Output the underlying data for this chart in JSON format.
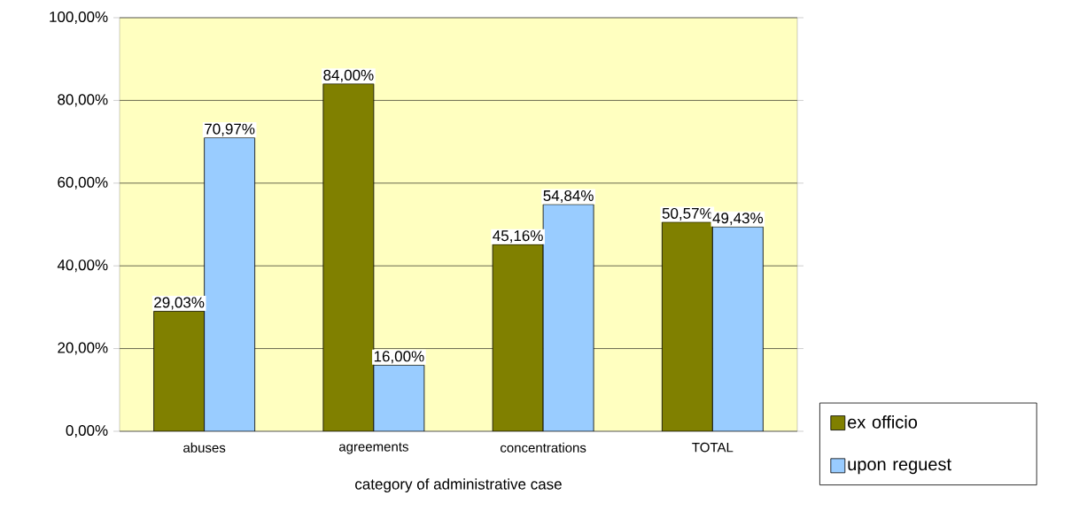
{
  "chart_data": {
    "type": "bar",
    "xlabel": "category of administrative case",
    "categories": [
      "abuses",
      "agreements",
      "concentrations",
      "TOTAL"
    ],
    "series": [
      {
        "name": "ex officio",
        "color": "#808000",
        "values": [
          29.03,
          84.0,
          45.16,
          50.57
        ],
        "value_labels": [
          "29,03%",
          "84,00%",
          "45,16%",
          "50,57%"
        ]
      },
      {
        "name": "upon reguest",
        "color": "#99ccff",
        "values": [
          70.97,
          16.0,
          54.84,
          49.43
        ],
        "value_labels": [
          "70,97%",
          "16,00%",
          "54,84%",
          "49,43%"
        ]
      }
    ],
    "ylim": [
      0,
      100
    ],
    "yticks": [
      {
        "value": 0,
        "label": "0,00%"
      },
      {
        "value": 20,
        "label": "20,00%"
      },
      {
        "value": 40,
        "label": "40,00%"
      },
      {
        "value": 60,
        "label": "60,00%"
      },
      {
        "value": 80,
        "label": "80,00%"
      },
      {
        "value": 100,
        "label": "100,00%"
      }
    ],
    "grid": "y",
    "legend": "right"
  }
}
